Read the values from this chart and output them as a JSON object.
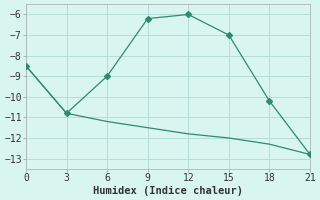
{
  "xlabel": "Humidex (Indice chaleur)",
  "ylabel": "",
  "line1_x": [
    0,
    3,
    6,
    9,
    12,
    15,
    18,
    21
  ],
  "line1_y": [
    -8.5,
    -10.8,
    -9.0,
    -6.2,
    -6.0,
    -7.0,
    -10.2,
    -12.8
  ],
  "line2_x": [
    0,
    3,
    6,
    9,
    12,
    15,
    18,
    21
  ],
  "line2_y": [
    -8.5,
    -10.8,
    -11.2,
    -11.5,
    -11.8,
    -12.0,
    -12.3,
    -12.8
  ],
  "line_color": "#2e8b6e",
  "bg_color": "#d8f5f0",
  "grid_color": "#b8ddd8",
  "xlim": [
    0,
    21
  ],
  "ylim": [
    -13.5,
    -5.5
  ],
  "xticks": [
    0,
    3,
    6,
    9,
    12,
    15,
    18,
    21
  ],
  "yticks": [
    -6,
    -7,
    -8,
    -9,
    -10,
    -11,
    -12,
    -13
  ],
  "marker": "D",
  "marker_size": 3,
  "tick_fontsize": 7,
  "xlabel_fontsize": 7.5
}
